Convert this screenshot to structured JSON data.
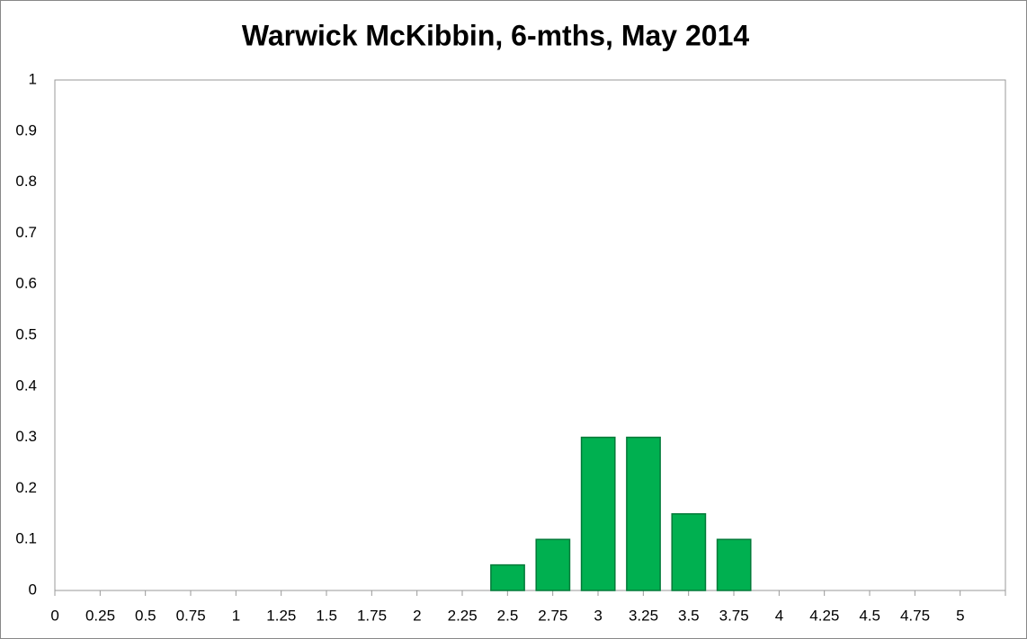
{
  "chart_data": {
    "type": "bar",
    "title": "Warwick McKibbin, 6-mths, May 2014",
    "categories": [
      "0",
      "0.25",
      "0.5",
      "0.75",
      "1",
      "1.25",
      "1.5",
      "1.75",
      "2",
      "2.25",
      "2.5",
      "2.75",
      "3",
      "3.25",
      "3.5",
      "3.75",
      "4",
      "4.25",
      "4.5",
      "4.75",
      "5"
    ],
    "values": [
      0,
      0,
      0,
      0,
      0,
      0,
      0,
      0,
      0,
      0,
      0.05,
      0.1,
      0.3,
      0.3,
      0.15,
      0.1,
      0,
      0,
      0,
      0,
      0
    ],
    "color": "#00b050",
    "ylim": [
      0,
      1
    ],
    "yticks": [
      0,
      0.1,
      0.2,
      0.3,
      0.4,
      0.5,
      0.6,
      0.7,
      0.8,
      0.9,
      1
    ],
    "grid": false
  }
}
